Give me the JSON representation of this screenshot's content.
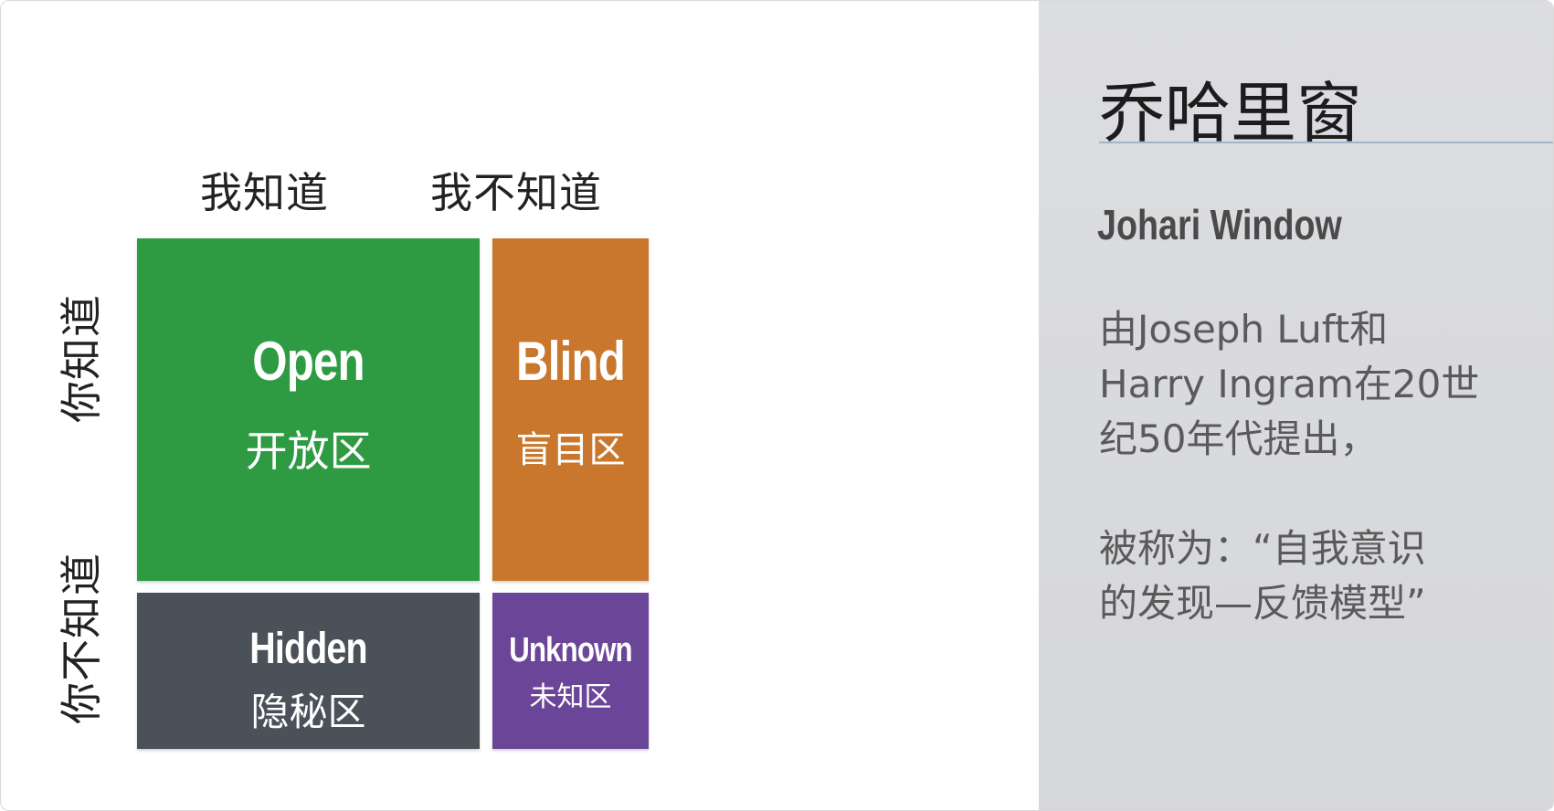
{
  "matrix": {
    "col_headers": [
      "我知道",
      "我不知道"
    ],
    "row_headers": [
      "你知道",
      "你不知道"
    ],
    "quadrants": {
      "open": {
        "en": "Open",
        "zh": "开放区",
        "color": "#2e9b43"
      },
      "blind": {
        "en": "Blind",
        "zh": "盲目区",
        "color": "#c8772d"
      },
      "hidden": {
        "en": "Hidden",
        "zh": "隐秘区",
        "color": "#4b5158"
      },
      "unknown": {
        "en": "Unknown",
        "zh": "未知区",
        "color": "#6b4597"
      }
    }
  },
  "panel": {
    "title": "乔哈里窗",
    "subtitle": "Johari Window",
    "paragraph1": [
      "由Joseph Luft和",
      "Harry Ingram在20世",
      "纪50年代提出，"
    ],
    "paragraph2": [
      "被称为：“自我意识",
      "的发现—反馈模型”"
    ]
  }
}
